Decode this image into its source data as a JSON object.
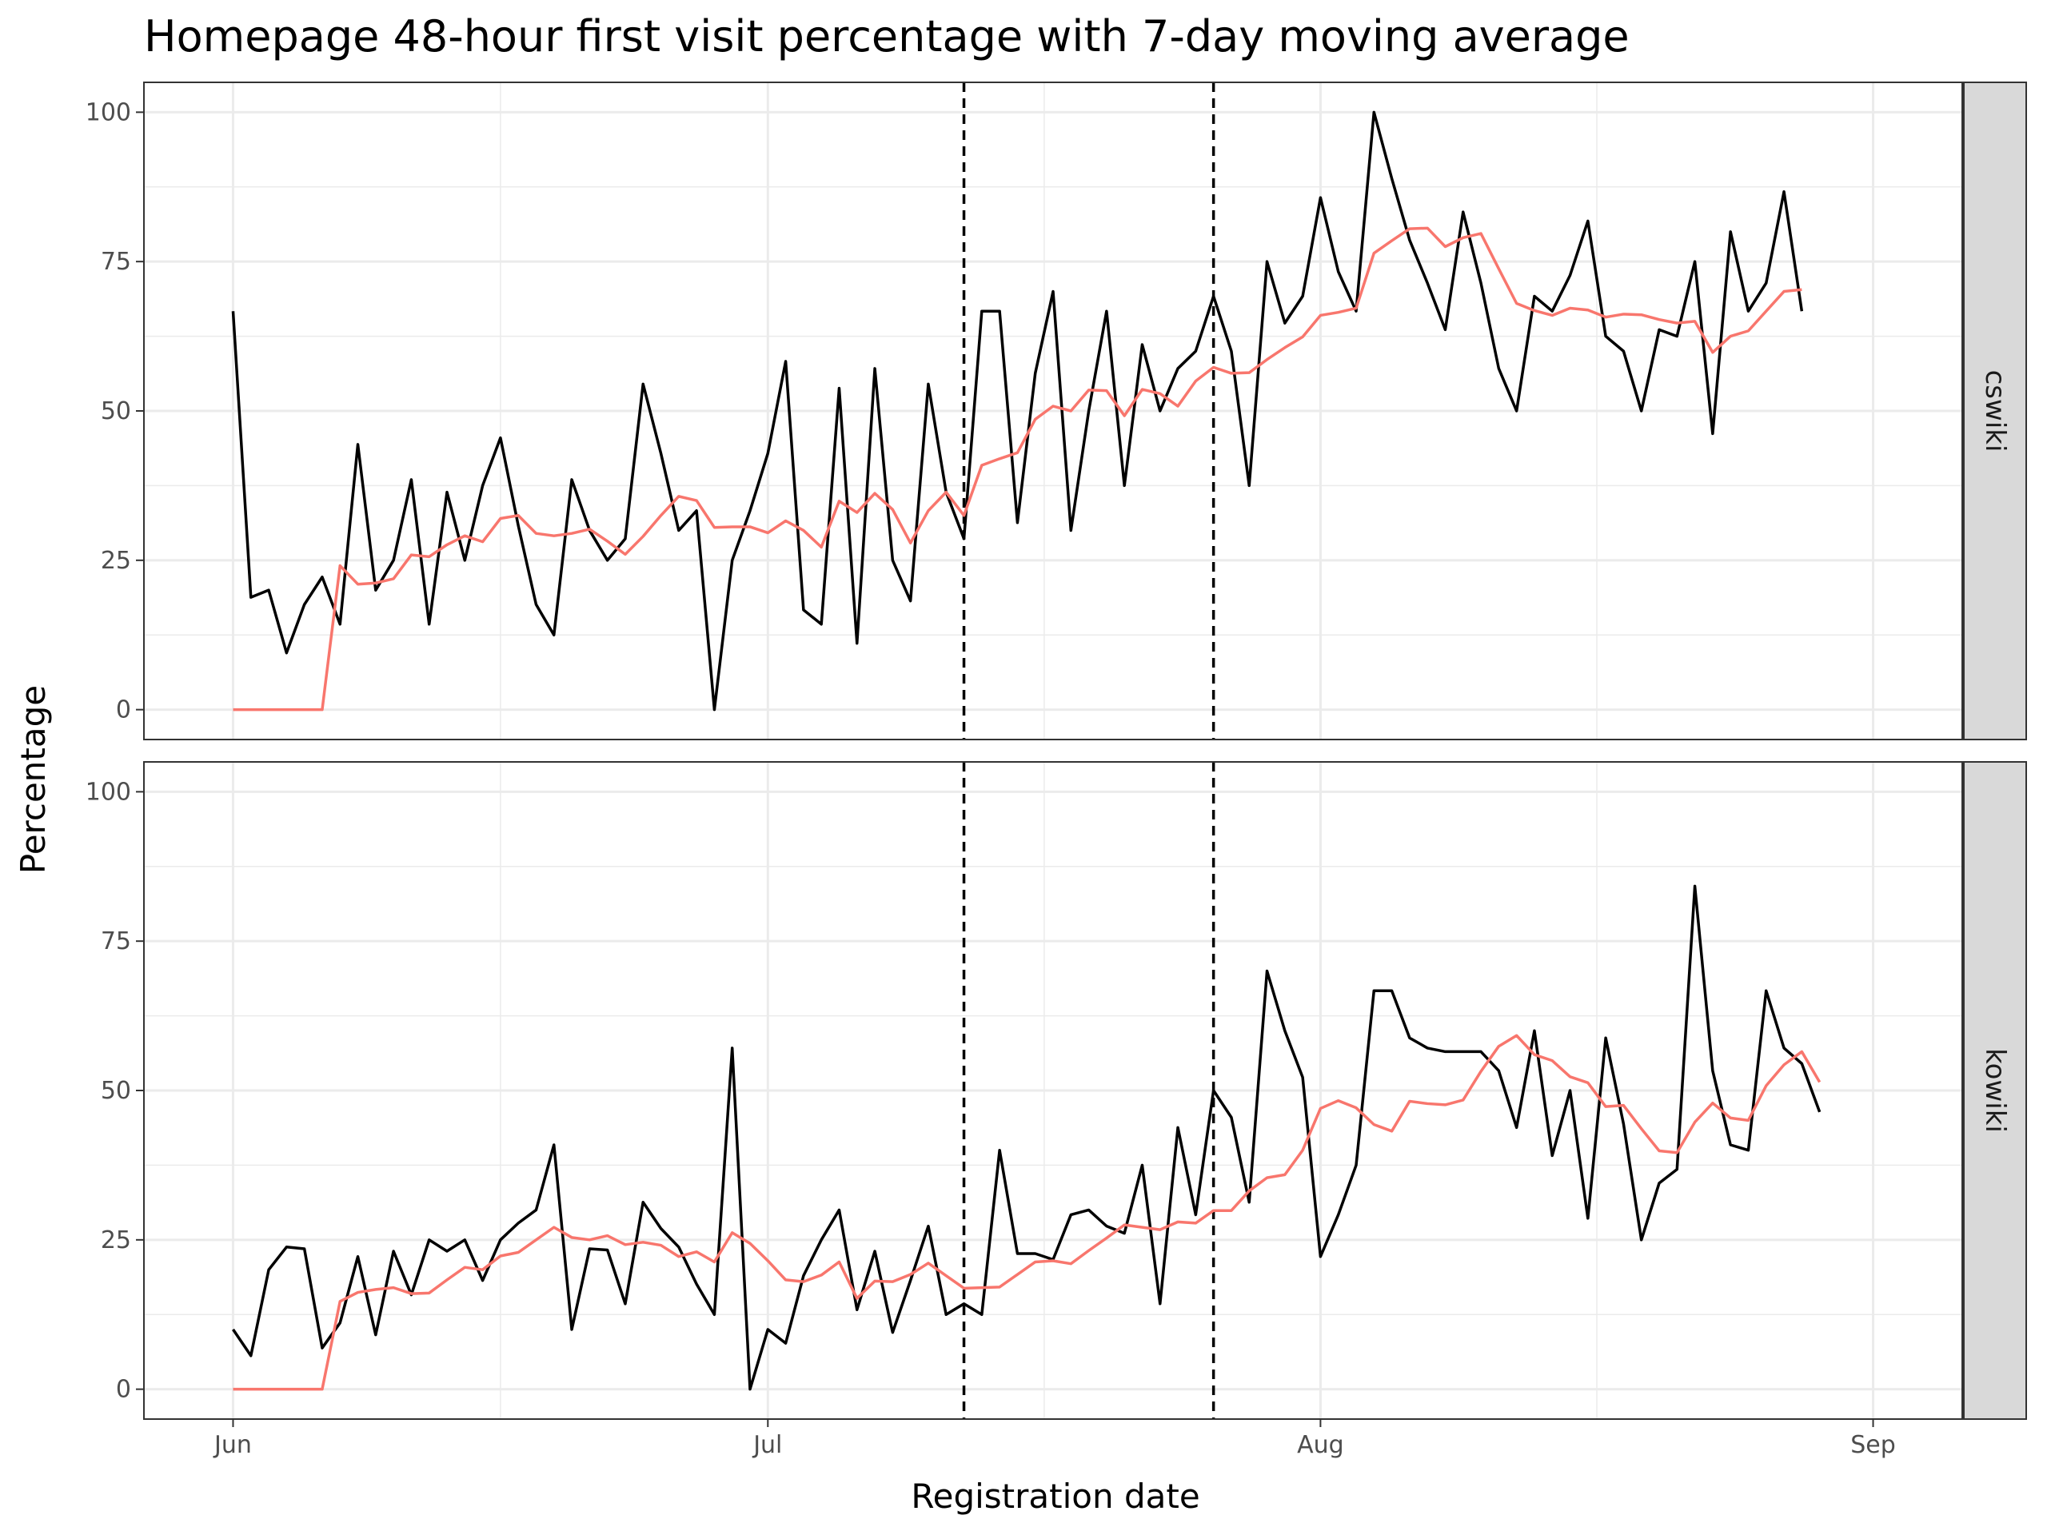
{
  "chart_data": {
    "type": "line",
    "title": "Homepage 48-hour first visit percentage with 7-day moving average",
    "xlabel": "Registration date",
    "ylabel": "Percentage",
    "x_start": "2018-06-01",
    "x_ticks": [
      {
        "label": "Jun",
        "date": "2018-06-01"
      },
      {
        "label": "Jul",
        "date": "2018-07-01"
      },
      {
        "label": "Aug",
        "date": "2018-08-01"
      },
      {
        "label": "Sep",
        "date": "2018-09-01"
      }
    ],
    "xlim": [
      "2018-05-27",
      "2018-09-06"
    ],
    "ylim": [
      -5,
      105
    ],
    "y_ticks": [
      0,
      25,
      50,
      75,
      100
    ],
    "grid": true,
    "vlines": [
      {
        "date": "2018-07-12",
        "style": "dashed"
      },
      {
        "date": "2018-07-26",
        "style": "dashed"
      }
    ],
    "colors": {
      "daily": "#000000",
      "moving_average": "#F8766D",
      "grid": "#ebebeb",
      "strip": "#d9d9d9"
    },
    "panels": [
      {
        "strip": "cswiki",
        "series": [
          {
            "style": "daily",
            "values": [
              66.7,
              18.8,
              20.0,
              9.5,
              17.6,
              22.2,
              14.3,
              44.4,
              20.0,
              25.0,
              38.5,
              14.3,
              36.4,
              25.0,
              37.5,
              45.5,
              30.8,
              17.6,
              12.5,
              38.5,
              30.0,
              25.0,
              28.6,
              54.5,
              42.9,
              30.0,
              33.3,
              0.0,
              25.0,
              33.3,
              42.9,
              58.3,
              16.7,
              14.3,
              53.8,
              11.1,
              57.1,
              25.0,
              18.2,
              54.5,
              36.4,
              28.6,
              66.7,
              66.7,
              31.3,
              56.3,
              70.0,
              30.0,
              50.0,
              66.7,
              37.5,
              61.1,
              50.0,
              57.1,
              60.0,
              69.2,
              60.0,
              37.5,
              75.0,
              64.7,
              69.2,
              85.7,
              73.3,
              66.7,
              100.0,
              88.9,
              78.6,
              71.4,
              63.6,
              83.3,
              71.4,
              57.1,
              50.0,
              69.2,
              66.7,
              72.7,
              81.8,
              62.5,
              60.0,
              50.0,
              63.6,
              62.5,
              75.0,
              46.2,
              80.0,
              66.7,
              71.4,
              86.7,
              66.7
            ]
          },
          {
            "style": "moving_average",
            "values": [
              0,
              0,
              0,
              0,
              0,
              0,
              24.1,
              21.0,
              21.2,
              21.9,
              25.9,
              25.6,
              27.6,
              29.1,
              28.1,
              32.0,
              32.5,
              29.5,
              29.1,
              29.5,
              30.2,
              28.2,
              26.0,
              29.0,
              32.5,
              35.7,
              35.0,
              30.5,
              30.6,
              30.6,
              29.6,
              31.6,
              30.0,
              27.2,
              34.9,
              33.0,
              36.2,
              33.5,
              27.9,
              33.3,
              36.4,
              32.5,
              40.9,
              42.0,
              43.0,
              48.6,
              50.8,
              50.0,
              53.5,
              53.4,
              49.2,
              53.6,
              52.9,
              50.8,
              55.0,
              57.3,
              56.3,
              56.4,
              58.6,
              60.6,
              62.4,
              66.0,
              66.5,
              67.2,
              76.4,
              78.5,
              80.5,
              80.6,
              77.5,
              79.0,
              79.7,
              73.8,
              68.0,
              66.8,
              66.0,
              67.2,
              66.9,
              65.7,
              66.2,
              66.1,
              65.3,
              64.7,
              65.0,
              59.8,
              62.5,
              63.4,
              66.7,
              70.0,
              70.3
            ]
          }
        ]
      },
      {
        "strip": "kowiki",
        "series": [
          {
            "style": "daily",
            "values": [
              10.0,
              5.6,
              20.0,
              23.8,
              23.5,
              6.9,
              11.1,
              22.2,
              9.1,
              23.1,
              15.8,
              25.0,
              23.1,
              25.0,
              18.2,
              25.0,
              27.8,
              30.0,
              40.9,
              10.0,
              23.5,
              23.3,
              14.3,
              31.3,
              26.9,
              23.8,
              17.6,
              12.5,
              57.1,
              0.0,
              10.0,
              7.7,
              19.0,
              25.0,
              30.0,
              13.3,
              23.1,
              9.5,
              18.2,
              27.3,
              12.5,
              14.3,
              12.5,
              40.0,
              22.7,
              22.7,
              21.7,
              29.2,
              30.0,
              27.3,
              26.1,
              37.5,
              14.3,
              43.8,
              29.2,
              50.0,
              45.5,
              31.3,
              70.0,
              60.0,
              52.2,
              22.2,
              29.2,
              37.5,
              66.7,
              66.7,
              58.8,
              57.1,
              56.5,
              56.5,
              56.5,
              53.3,
              43.8,
              60.0,
              39.1,
              50.0,
              28.6,
              58.8,
              44.4,
              25.0,
              34.5,
              36.8,
              84.2,
              53.3,
              40.9,
              40.0,
              66.7,
              57.1,
              54.5,
              46.4
            ]
          },
          {
            "style": "moving_average",
            "values": [
              0,
              0,
              0,
              0,
              0,
              0,
              14.7,
              16.2,
              16.7,
              17.0,
              16.0,
              16.1,
              18.3,
              20.4,
              20.0,
              22.3,
              22.9,
              25.0,
              27.1,
              25.4,
              25.0,
              25.7,
              24.2,
              24.6,
              24.1,
              22.2,
              23.0,
              21.3,
              26.2,
              24.4,
              21.5,
              18.3,
              18.0,
              19.1,
              21.3,
              15.2,
              18.1,
              18.0,
              19.2,
              21.1,
              19.0,
              16.9,
              17.0,
              17.1,
              19.2,
              21.3,
              21.5,
              21.0,
              23.2,
              25.3,
              27.5,
              27.1,
              26.7,
              28.0,
              27.8,
              29.9,
              29.9,
              33.2,
              35.4,
              35.9,
              40.0,
              47.0,
              48.3,
              47.1,
              44.3,
              43.2,
              48.2,
              47.8,
              47.6,
              48.4,
              53.2,
              57.4,
              59.2,
              56.0,
              55.0,
              52.3,
              51.3,
              47.3,
              47.5,
              43.6,
              39.9,
              39.6,
              44.7,
              47.9,
              45.4,
              45.0,
              50.8,
              54.3,
              56.5,
              51.4
            ]
          }
        ]
      }
    ]
  }
}
